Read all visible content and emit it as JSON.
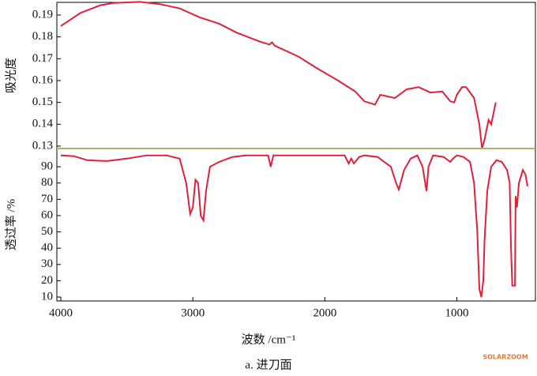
{
  "chart_data": [
    {
      "type": "line",
      "ylabel": "吸光度",
      "xlim": [
        4030,
        405
      ],
      "ylim": [
        0.1289,
        0.1958
      ],
      "yticks": [
        0.13,
        0.14,
        0.15,
        0.16,
        0.17,
        0.18,
        0.19
      ],
      "x": [
        4000,
        3850,
        3700,
        3600,
        3400,
        3250,
        3100,
        2950,
        2800,
        2670,
        2500,
        2420,
        2400,
        2380,
        2200,
        2070,
        1900,
        1770,
        1700,
        1620,
        1580,
        1470,
        1380,
        1290,
        1200,
        1110,
        1050,
        1020,
        1000,
        960,
        930,
        870,
        830,
        810,
        790,
        760,
        740,
        705
      ],
      "series": [
        {
          "color": "#e0203a",
          "values": [
            0.185,
            0.191,
            0.1945,
            0.1955,
            0.196,
            0.195,
            0.193,
            0.189,
            0.186,
            0.182,
            0.178,
            0.1765,
            0.1775,
            0.176,
            0.171,
            0.166,
            0.16,
            0.155,
            0.1505,
            0.149,
            0.1535,
            0.152,
            0.156,
            0.157,
            0.1545,
            0.155,
            0.1505,
            0.15,
            0.1535,
            0.157,
            0.157,
            0.152,
            0.14,
            0.129,
            0.133,
            0.142,
            0.14,
            0.15
          ]
        }
      ]
    },
    {
      "type": "line",
      "ylabel": "透过率 /%",
      "xlabel": "波数 /cm⁻¹",
      "xlim": [
        4030,
        405
      ],
      "ylim": [
        7.6,
        101.2
      ],
      "xticks": [
        4000,
        3000,
        2000,
        1000
      ],
      "yticks": [
        10,
        20,
        30,
        40,
        50,
        60,
        70,
        80,
        90
      ],
      "x": [
        4000,
        3900,
        3800,
        3650,
        3500,
        3350,
        3200,
        3100,
        3050,
        3020,
        3000,
        2980,
        2960,
        2940,
        2920,
        2900,
        2870,
        2800,
        2700,
        2600,
        2430,
        2410,
        2390,
        1850,
        1820,
        1800,
        1780,
        1740,
        1700,
        1600,
        1500,
        1460,
        1440,
        1400,
        1350,
        1300,
        1260,
        1240,
        1230,
        1215,
        1180,
        1100,
        1050,
        1030,
        1000,
        950,
        900,
        870,
        845,
        830,
        815,
        800,
        790,
        770,
        740,
        700,
        660,
        620,
        600,
        590,
        580,
        560,
        555,
        545,
        530,
        500,
        480,
        465
      ],
      "series": [
        {
          "color": "#e0203a",
          "values": [
            97,
            96.5,
            94,
            93.5,
            95,
            97,
            97,
            95,
            80,
            61,
            65,
            82,
            80,
            60,
            57,
            75,
            90,
            93,
            96,
            97,
            97,
            90,
            97,
            97,
            92,
            95,
            92,
            96,
            97,
            96,
            90,
            80,
            76,
            88,
            95,
            97,
            90,
            80,
            75,
            90,
            97,
            96,
            93,
            95,
            97,
            96,
            93,
            80,
            50,
            15,
            10,
            20,
            45,
            75,
            90,
            94,
            93,
            88,
            80,
            40,
            17,
            17,
            72,
            65,
            80,
            88,
            85,
            78
          ]
        }
      ]
    }
  ],
  "divider_color": "#a8b860",
  "caption": "a. 进刀面",
  "watermark": "SOLARZOOM"
}
